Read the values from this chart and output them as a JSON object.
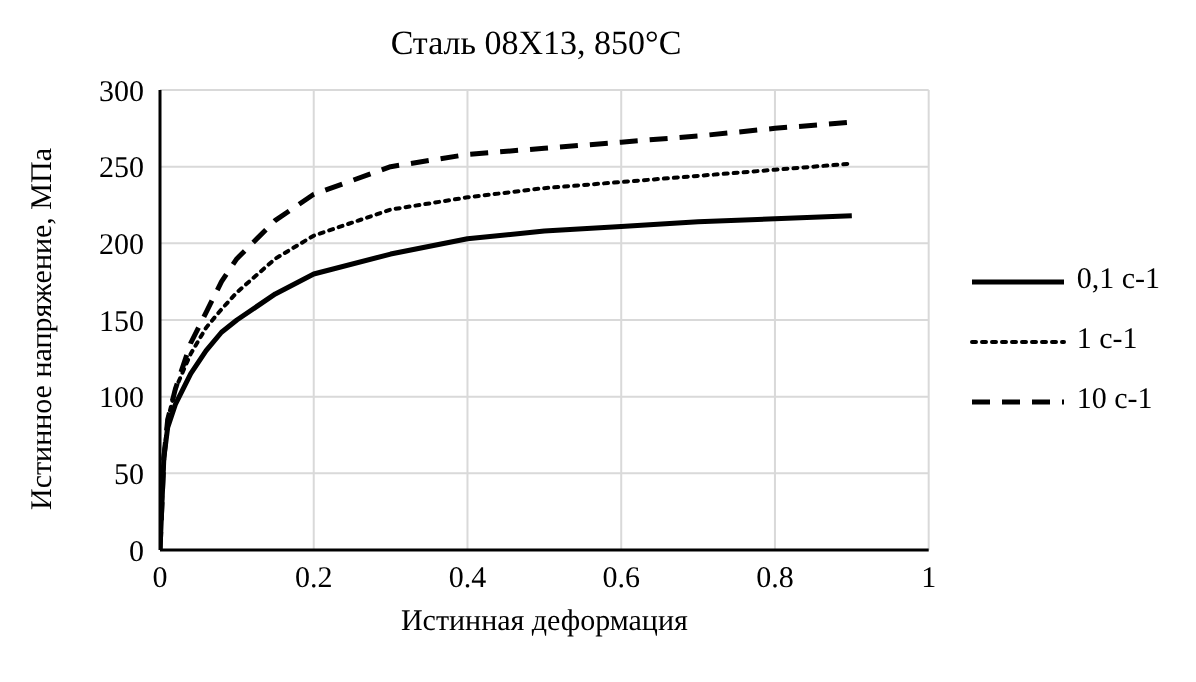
{
  "chart_data": {
    "type": "line",
    "title": "Сталь 08Х13, 850°C",
    "xlabel": "Истинная деформация",
    "ylabel": "Истинное напряжение, МПа",
    "x": [
      0,
      0.005,
      0.01,
      0.02,
      0.04,
      0.06,
      0.08,
      0.1,
      0.15,
      0.2,
      0.3,
      0.4,
      0.5,
      0.6,
      0.7,
      0.8,
      0.9
    ],
    "series": [
      {
        "name": "0,1 с-1",
        "color": "#000000",
        "line_style": "solid",
        "values": [
          0,
          60,
          80,
          95,
          115,
          130,
          142,
          150,
          167,
          180,
          193,
          203,
          208,
          211,
          214,
          216,
          218
        ]
      },
      {
        "name": "1 с-1",
        "color": "#000000",
        "line_style": "dotted",
        "values": [
          0,
          60,
          85,
          105,
          128,
          145,
          157,
          168,
          190,
          205,
          222,
          230,
          236,
          240,
          244,
          248,
          252
        ]
      },
      {
        "name": "10 с-1",
        "color": "#000000",
        "line_style": "dashed",
        "values": [
          0,
          60,
          85,
          105,
          135,
          155,
          175,
          190,
          215,
          232,
          250,
          258,
          262,
          266,
          270,
          275,
          279
        ]
      }
    ],
    "xlim": [
      0,
      1
    ],
    "xticks": [
      0,
      0.2,
      0.4,
      0.6,
      0.8,
      1
    ],
    "ylim": [
      0,
      300
    ],
    "yticks": [
      0,
      50,
      100,
      150,
      200,
      250,
      300
    ],
    "grid": true,
    "legend": "right",
    "marker": "none"
  }
}
